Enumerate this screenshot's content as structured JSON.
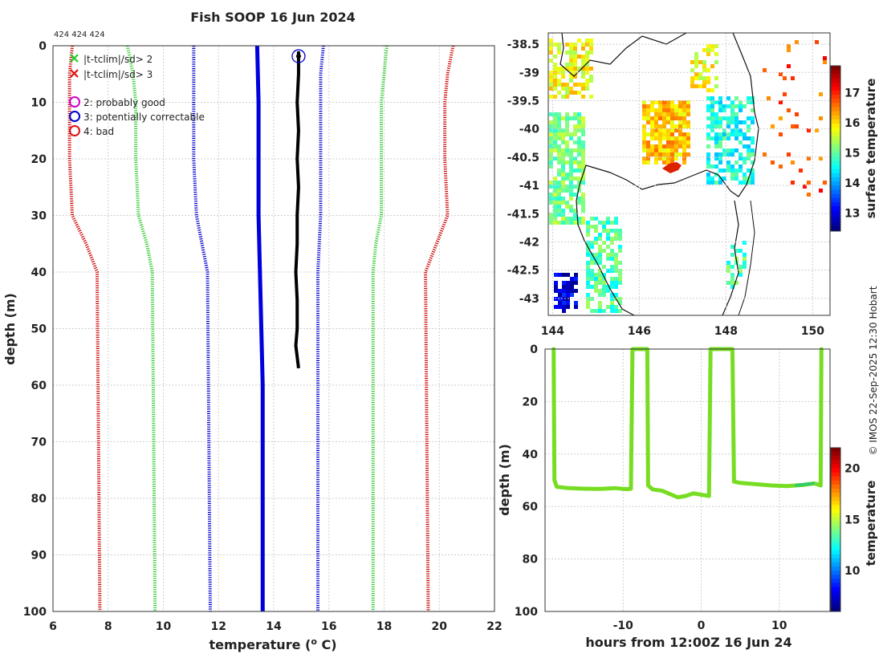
{
  "figure": {
    "title": "Fish SOOP 16 Jun 2024",
    "ids": "424 424 424",
    "credit": "© IMOS 22-Sep-2025 12:30 Hobart"
  },
  "chart_data": [
    {
      "id": "profile",
      "type": "line",
      "xlabel": "temperature (° C)",
      "ylabel": "depth (m)",
      "xlim": [
        6,
        22
      ],
      "ylim": [
        0,
        100
      ],
      "xticks": [
        6,
        8,
        10,
        12,
        14,
        16,
        18,
        20,
        22
      ],
      "yticks": [
        0,
        10,
        20,
        30,
        40,
        50,
        60,
        70,
        80,
        90,
        100
      ],
      "legend": {
        "position": "top-left",
        "entries": [
          {
            "label": "|t-tclim|/sd> 2",
            "marker": "x",
            "color": "#22cc22"
          },
          {
            "label": "|t-tclim|/sd> 3",
            "marker": "x",
            "color": "#dd1111"
          },
          {
            "label": "2: probably good",
            "marker": "circle",
            "color": "#cc00cc"
          },
          {
            "label": "3: potentially correctable",
            "marker": "circle",
            "color": "#0000cc"
          },
          {
            "label": "4: bad",
            "marker": "circle",
            "color": "#dd1111"
          }
        ]
      },
      "series": [
        {
          "name": "clim -3sd",
          "color": "#cc0000",
          "style": "dotted",
          "depths": [
            0,
            5,
            10,
            20,
            30,
            35,
            40,
            100
          ],
          "values": [
            6.7,
            6.6,
            6.6,
            6.6,
            6.7,
            7.2,
            7.6,
            7.7
          ]
        },
        {
          "name": "clim -2sd",
          "color": "#33cc33",
          "style": "dotted",
          "depths": [
            0,
            5,
            10,
            20,
            30,
            35,
            40,
            100
          ],
          "values": [
            8.7,
            8.9,
            9.0,
            9.0,
            9.1,
            9.4,
            9.6,
            9.7
          ]
        },
        {
          "name": "clim -1sd",
          "color": "#0000cc",
          "style": "dotted",
          "depths": [
            0,
            5,
            10,
            20,
            30,
            35,
            40,
            100
          ],
          "values": [
            11.1,
            11.1,
            11.1,
            11.1,
            11.2,
            11.4,
            11.6,
            11.7
          ]
        },
        {
          "name": "clim mean",
          "color": "#0000dd",
          "style": "solid",
          "depths": [
            0,
            10,
            20,
            30,
            40,
            50,
            60,
            100
          ],
          "values": [
            13.4,
            13.45,
            13.45,
            13.45,
            13.5,
            13.55,
            13.6,
            13.6
          ]
        },
        {
          "name": "clim +1sd",
          "color": "#0000cc",
          "style": "dotted",
          "depths": [
            0,
            5,
            10,
            20,
            30,
            40,
            100
          ],
          "values": [
            15.8,
            15.7,
            15.7,
            15.7,
            15.7,
            15.6,
            15.6
          ]
        },
        {
          "name": "clim +2sd",
          "color": "#33cc33",
          "style": "dotted",
          "depths": [
            0,
            5,
            10,
            20,
            30,
            35,
            40,
            100
          ],
          "values": [
            18.1,
            18.0,
            17.9,
            17.9,
            17.9,
            17.7,
            17.6,
            17.6
          ]
        },
        {
          "name": "clim +3sd",
          "color": "#cc0000",
          "style": "dotted",
          "depths": [
            0,
            5,
            10,
            20,
            30,
            35,
            40,
            100
          ],
          "values": [
            20.5,
            20.3,
            20.2,
            20.2,
            20.3,
            19.9,
            19.5,
            19.6
          ]
        },
        {
          "name": "observed profile",
          "color": "#000000",
          "style": "solid",
          "depths": [
            1,
            5,
            10,
            15,
            20,
            25,
            30,
            35,
            40,
            45,
            50,
            53,
            57
          ],
          "values": [
            14.9,
            14.9,
            14.85,
            14.9,
            14.85,
            14.9,
            14.85,
            14.85,
            14.8,
            14.85,
            14.85,
            14.8,
            14.9
          ]
        }
      ],
      "flag_marker": {
        "temperature": 14.9,
        "depth": 1,
        "color": "#0000cc"
      }
    },
    {
      "id": "sst_map",
      "type": "heatmap",
      "title": "",
      "ylabel": "",
      "xlim": [
        143.9,
        150.4
      ],
      "ylim": [
        -43.3,
        -38.3
      ],
      "xticks": [
        "144",
        "146",
        "148",
        "150"
      ],
      "yticks": [
        "-38.5",
        "-39",
        "-39.5",
        "-40",
        "-40.5",
        "-41",
        "-41.5",
        "-42",
        "-42.5",
        "-43"
      ],
      "colorbar": {
        "label": "surface temperature",
        "ticks": [
          "13",
          "14",
          "15",
          "16",
          "17"
        ],
        "range": [
          12.4,
          17.9
        ]
      }
    },
    {
      "id": "timeseries",
      "type": "scatter",
      "xlabel": "hours from 12:00Z 16 Jun 24",
      "ylabel": "depth (m)",
      "xlim": [
        -20,
        16.5
      ],
      "ylim": [
        0,
        100
      ],
      "xticks": [
        -10,
        0,
        10
      ],
      "yticks": [
        0,
        20,
        40,
        60,
        80,
        100
      ],
      "colorbar": {
        "label": "temperature",
        "ticks": [
          "10",
          "15",
          "20"
        ],
        "range": [
          6,
          22
        ]
      },
      "points_color": "#77dd22",
      "track": [
        [
          -18.9,
          0
        ],
        [
          -18.8,
          50
        ],
        [
          -18.5,
          52.5
        ],
        [
          -17,
          53
        ],
        [
          -15,
          53.2
        ],
        [
          -13,
          53.3
        ],
        [
          -11,
          53
        ],
        [
          -9.5,
          53.4
        ],
        [
          -9.0,
          53.2
        ],
        [
          -8.8,
          0
        ],
        [
          -6.9,
          0
        ],
        [
          -6.8,
          52
        ],
        [
          -6.2,
          53.5
        ],
        [
          -5,
          54
        ],
        [
          -3,
          56.5
        ],
        [
          -2,
          56
        ],
        [
          -1,
          55
        ],
        [
          0,
          55.5
        ],
        [
          1,
          56
        ],
        [
          1.2,
          0
        ],
        [
          4.0,
          0
        ],
        [
          4.2,
          50.5
        ],
        [
          5,
          51
        ],
        [
          7,
          51.5
        ],
        [
          9,
          52
        ],
        [
          11,
          52.2
        ],
        [
          13,
          51.8
        ],
        [
          14.5,
          51.2
        ],
        [
          15.3,
          52
        ],
        [
          15.4,
          0
        ]
      ]
    }
  ]
}
